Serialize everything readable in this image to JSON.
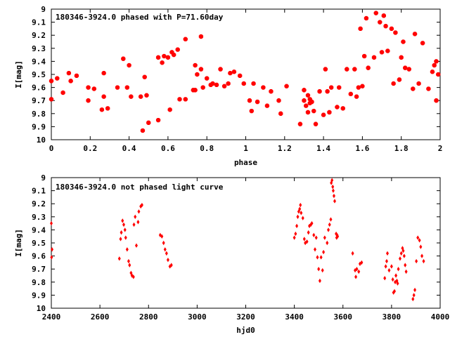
{
  "chart_data": [
    {
      "type": "scatter",
      "title": "180346-3924.0 phased with P=71.60day",
      "xlabel": "phase",
      "ylabel": "I[mag]",
      "xlim": [
        0,
        2
      ],
      "ylim": [
        10,
        9
      ],
      "y_inverted": true,
      "xticks": [
        "0",
        "0.2",
        "0.4",
        "0.6",
        "0.8",
        "1",
        "1.2",
        "1.4",
        "1.6",
        "1.8",
        "2"
      ],
      "yticks": [
        "9",
        "9.1",
        "9.2",
        "9.3",
        "9.4",
        "9.5",
        "9.6",
        "9.7",
        "9.8",
        "9.9",
        "10"
      ],
      "grid": false,
      "marker_color": "#ff0000",
      "series": [
        {
          "points": [
            [
              0.0,
              9.55
            ],
            [
              0.0,
              9.69
            ],
            [
              0.03,
              9.53
            ],
            [
              0.06,
              9.64
            ],
            [
              0.09,
              9.49
            ],
            [
              0.1,
              9.55
            ],
            [
              0.13,
              9.51
            ],
            [
              0.19,
              9.7
            ],
            [
              0.19,
              9.6
            ],
            [
              0.22,
              9.61
            ],
            [
              0.26,
              9.77
            ],
            [
              0.27,
              9.67
            ],
            [
              0.27,
              9.49
            ],
            [
              0.29,
              9.76
            ],
            [
              0.34,
              9.6
            ],
            [
              0.37,
              9.38
            ],
            [
              0.39,
              9.6
            ],
            [
              0.4,
              9.43
            ],
            [
              0.41,
              9.67
            ],
            [
              0.46,
              9.67
            ],
            [
              0.47,
              9.93
            ],
            [
              0.48,
              9.52
            ],
            [
              0.49,
              9.66
            ],
            [
              0.5,
              9.87
            ],
            [
              0.55,
              9.85
            ],
            [
              0.55,
              9.37
            ],
            [
              0.57,
              9.41
            ],
            [
              0.58,
              9.36
            ],
            [
              0.6,
              9.37
            ],
            [
              0.61,
              9.77
            ],
            [
              0.62,
              9.33
            ],
            [
              0.63,
              9.35
            ],
            [
              0.65,
              9.31
            ],
            [
              0.66,
              9.69
            ],
            [
              0.69,
              9.69
            ],
            [
              0.69,
              9.23
            ],
            [
              0.73,
              9.62
            ],
            [
              0.74,
              9.43
            ],
            [
              0.74,
              9.62
            ],
            [
              0.75,
              9.5
            ],
            [
              0.77,
              9.21
            ],
            [
              0.77,
              9.46
            ],
            [
              0.78,
              9.6
            ],
            [
              0.8,
              9.53
            ],
            [
              0.82,
              9.58
            ],
            [
              0.83,
              9.57
            ],
            [
              0.85,
              9.58
            ],
            [
              0.87,
              9.46
            ],
            [
              0.89,
              9.59
            ],
            [
              0.91,
              9.57
            ],
            [
              0.92,
              9.49
            ],
            [
              0.94,
              9.48
            ],
            [
              0.97,
              9.51
            ],
            [
              0.99,
              9.57
            ],
            [
              1.02,
              9.7
            ],
            [
              1.03,
              9.78
            ],
            [
              1.04,
              9.57
            ],
            [
              1.06,
              9.71
            ],
            [
              1.09,
              9.6
            ],
            [
              1.11,
              9.74
            ],
            [
              1.13,
              9.63
            ],
            [
              1.17,
              9.7
            ],
            [
              1.18,
              9.8
            ],
            [
              1.21,
              9.59
            ],
            [
              1.28,
              9.88
            ],
            [
              1.3,
              9.7
            ],
            [
              1.3,
              9.62
            ],
            [
              1.31,
              9.74
            ],
            [
              1.32,
              9.79
            ],
            [
              1.32,
              9.66
            ],
            [
              1.33,
              9.69
            ],
            [
              1.33,
              9.72
            ],
            [
              1.34,
              9.71
            ],
            [
              1.35,
              9.78
            ],
            [
              1.36,
              9.88
            ],
            [
              1.38,
              9.63
            ],
            [
              1.4,
              9.81
            ],
            [
              1.41,
              9.46
            ],
            [
              1.42,
              9.63
            ],
            [
              1.43,
              9.79
            ],
            [
              1.44,
              9.6
            ],
            [
              1.47,
              9.75
            ],
            [
              1.48,
              9.6
            ],
            [
              1.5,
              9.76
            ],
            [
              1.52,
              9.46
            ],
            [
              1.54,
              9.65
            ],
            [
              1.56,
              9.46
            ],
            [
              1.57,
              9.67
            ],
            [
              1.58,
              9.6
            ],
            [
              1.59,
              9.15
            ],
            [
              1.6,
              9.59
            ],
            [
              1.61,
              9.36
            ],
            [
              1.62,
              9.07
            ],
            [
              1.63,
              9.45
            ],
            [
              1.66,
              9.37
            ],
            [
              1.67,
              9.03
            ],
            [
              1.69,
              9.1
            ],
            [
              1.7,
              9.33
            ],
            [
              1.71,
              9.05
            ],
            [
              1.72,
              9.13
            ],
            [
              1.73,
              9.32
            ],
            [
              1.75,
              9.15
            ],
            [
              1.76,
              9.57
            ],
            [
              1.77,
              9.18
            ],
            [
              1.79,
              9.54
            ],
            [
              1.8,
              9.37
            ],
            [
              1.81,
              9.25
            ],
            [
              1.82,
              9.45
            ],
            [
              1.84,
              9.46
            ],
            [
              1.86,
              9.61
            ],
            [
              1.87,
              9.19
            ],
            [
              1.89,
              9.57
            ],
            [
              1.91,
              9.26
            ],
            [
              1.94,
              9.61
            ],
            [
              1.96,
              9.48
            ],
            [
              1.97,
              9.43
            ],
            [
              1.98,
              9.4
            ],
            [
              1.98,
              9.7
            ],
            [
              1.99,
              9.5
            ]
          ]
        }
      ]
    },
    {
      "type": "scatter",
      "title": "180346-3924.0 not phased light curve",
      "xlabel": "hjd0",
      "ylabel": "I[mag]",
      "xlim": [
        2400,
        4000
      ],
      "ylim": [
        10,
        9
      ],
      "y_inverted": true,
      "xticks": [
        "2400",
        "2600",
        "2800",
        "3000",
        "3200",
        "3400",
        "3600",
        "3800",
        "4000"
      ],
      "yticks": [
        "9",
        "9.1",
        "9.2",
        "9.3",
        "9.4",
        "9.5",
        "9.6",
        "9.7",
        "9.8",
        "9.9",
        "10"
      ],
      "grid": false,
      "marker_color": "#ff0000",
      "series": [
        {
          "points": [
            [
              2400,
              9.35
            ],
            [
              2401,
              9.61
            ],
            [
              2403,
              9.55
            ],
            [
              2680,
              9.62
            ],
            [
              2685,
              9.47
            ],
            [
              2688,
              9.42
            ],
            [
              2693,
              9.33
            ],
            [
              2698,
              9.36
            ],
            [
              2703,
              9.4
            ],
            [
              2706,
              9.46
            ],
            [
              2712,
              9.55
            ],
            [
              2718,
              9.64
            ],
            [
              2722,
              9.67
            ],
            [
              2728,
              9.73
            ],
            [
              2732,
              9.75
            ],
            [
              2738,
              9.76
            ],
            [
              2740,
              9.36
            ],
            [
              2745,
              9.3
            ],
            [
              2750,
              9.52
            ],
            [
              2757,
              9.34
            ],
            [
              2760,
              9.26
            ],
            [
              2768,
              9.22
            ],
            [
              2773,
              9.21
            ],
            [
              2848,
              9.44
            ],
            [
              2855,
              9.45
            ],
            [
              2862,
              9.5
            ],
            [
              2868,
              9.55
            ],
            [
              2874,
              9.58
            ],
            [
              2880,
              9.63
            ],
            [
              2888,
              9.68
            ],
            [
              2894,
              9.67
            ],
            [
              3400,
              9.46
            ],
            [
              3405,
              9.43
            ],
            [
              3410,
              9.37
            ],
            [
              3414,
              9.3
            ],
            [
              3418,
              9.26
            ],
            [
              3422,
              9.24
            ],
            [
              3425,
              9.21
            ],
            [
              3428,
              9.27
            ],
            [
              3435,
              9.31
            ],
            [
              3441,
              9.47
            ],
            [
              3445,
              9.5
            ],
            [
              3452,
              9.49
            ],
            [
              3458,
              9.42
            ],
            [
              3462,
              9.37
            ],
            [
              3468,
              9.36
            ],
            [
              3472,
              9.35
            ],
            [
              3480,
              9.44
            ],
            [
              3485,
              9.55
            ],
            [
              3490,
              9.46
            ],
            [
              3495,
              9.61
            ],
            [
              3500,
              9.7
            ],
            [
              3505,
              9.79
            ],
            [
              3510,
              9.61
            ],
            [
              3516,
              9.71
            ],
            [
              3520,
              9.57
            ],
            [
              3525,
              9.46
            ],
            [
              3535,
              9.5
            ],
            [
              3540,
              9.4
            ],
            [
              3545,
              9.36
            ],
            [
              3550,
              9.32
            ],
            [
              3552,
              9.04
            ],
            [
              3555,
              9.02
            ],
            [
              3558,
              9.07
            ],
            [
              3560,
              9.1
            ],
            [
              3563,
              9.14
            ],
            [
              3566,
              9.18
            ],
            [
              3572,
              9.43
            ],
            [
              3574,
              9.46
            ],
            [
              3576,
              9.44
            ],
            [
              3578,
              9.45
            ],
            [
              3640,
              9.58
            ],
            [
              3650,
              9.71
            ],
            [
              3653,
              9.76
            ],
            [
              3657,
              9.7
            ],
            [
              3665,
              9.72
            ],
            [
              3670,
              9.66
            ],
            [
              3677,
              9.65
            ],
            [
              3772,
              9.77
            ],
            [
              3776,
              9.68
            ],
            [
              3780,
              9.64
            ],
            [
              3783,
              9.58
            ],
            [
              3790,
              9.71
            ],
            [
              3800,
              9.68
            ],
            [
              3805,
              9.78
            ],
            [
              3808,
              9.88
            ],
            [
              3812,
              9.87
            ],
            [
              3815,
              9.8
            ],
            [
              3818,
              9.75
            ],
            [
              3822,
              9.79
            ],
            [
              3825,
              9.81
            ],
            [
              3828,
              9.7
            ],
            [
              3835,
              9.62
            ],
            [
              3840,
              9.58
            ],
            [
              3845,
              9.54
            ],
            [
              3848,
              9.56
            ],
            [
              3852,
              9.6
            ],
            [
              3856,
              9.67
            ],
            [
              3860,
              9.72
            ],
            [
              3888,
              9.93
            ],
            [
              3892,
              9.9
            ],
            [
              3896,
              9.86
            ],
            [
              3902,
              9.64
            ],
            [
              3908,
              9.46
            ],
            [
              3915,
              9.48
            ],
            [
              3920,
              9.53
            ],
            [
              3925,
              9.6
            ],
            [
              3932,
              9.64
            ]
          ]
        }
      ]
    }
  ]
}
